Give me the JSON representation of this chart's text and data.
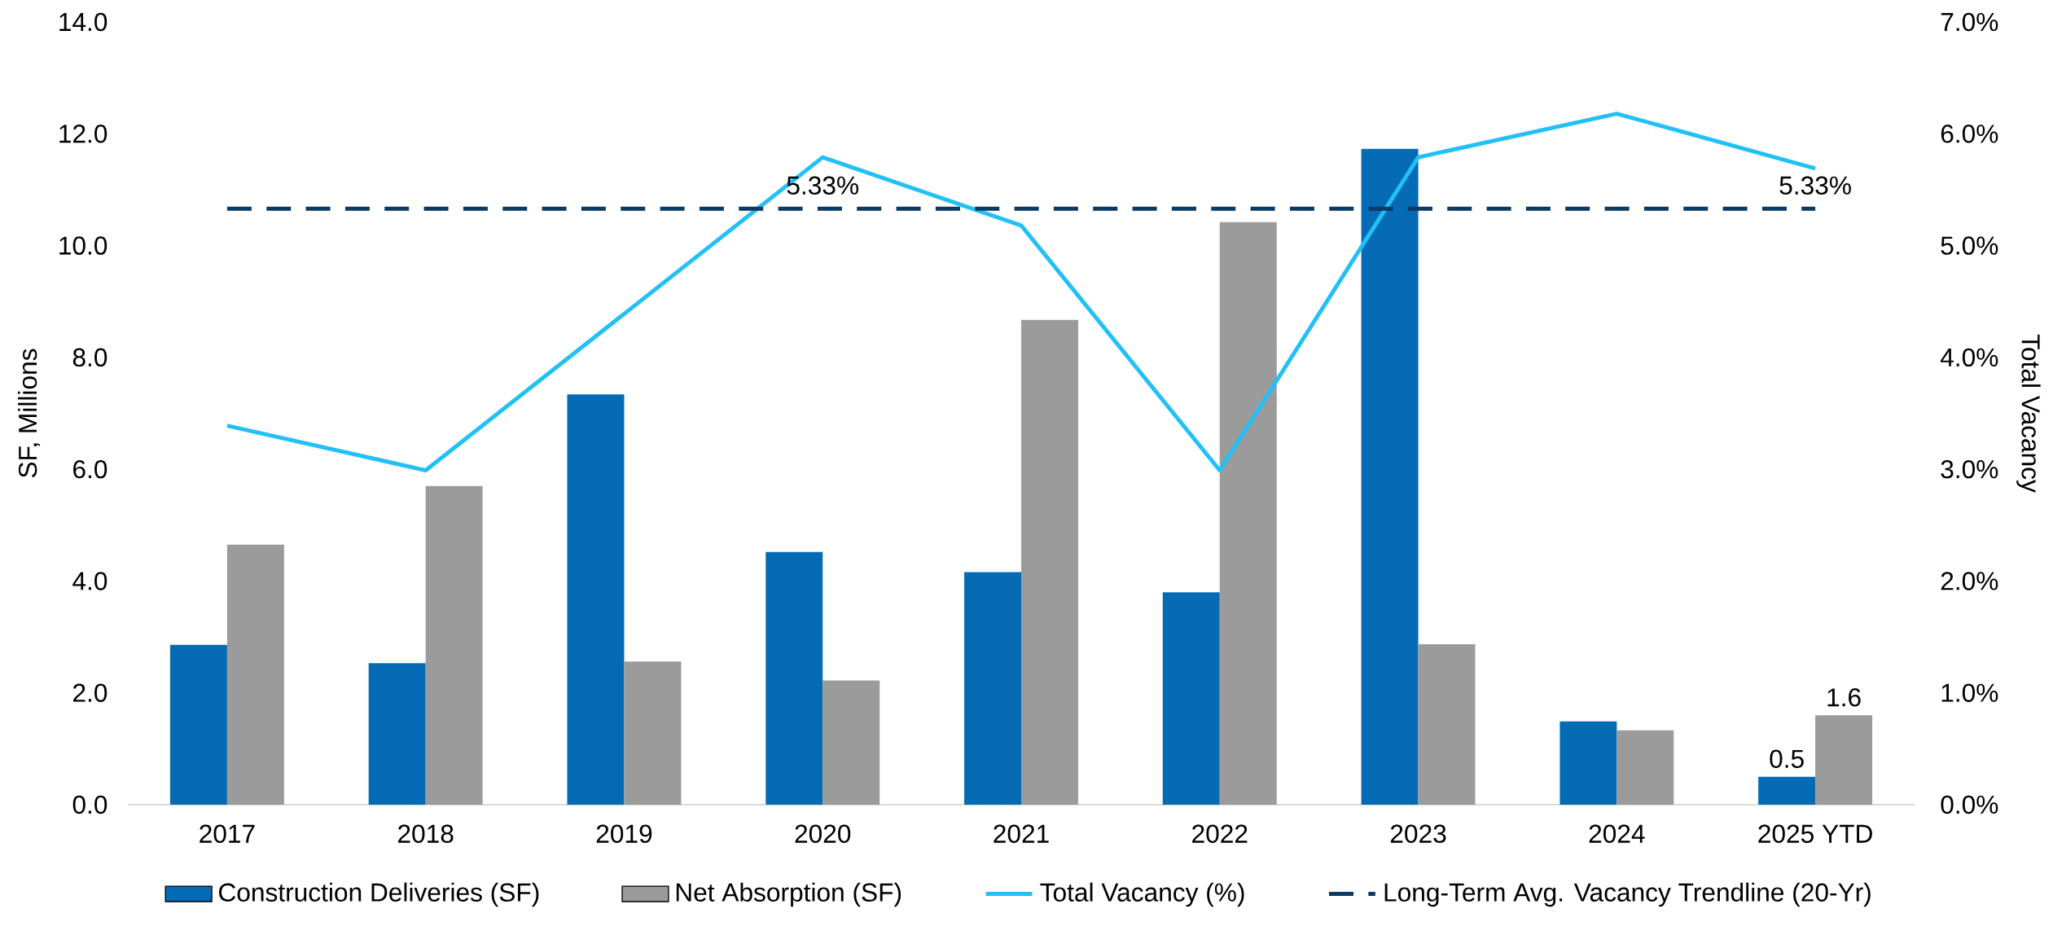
{
  "chart_data": {
    "type": "bar",
    "categories": [
      "2017",
      "2018",
      "2019",
      "2020",
      "2021",
      "2022",
      "2023",
      "2024",
      "2025 YTD"
    ],
    "ylabel": "SF, Millions",
    "y2label": "Total Vacancy",
    "ylim": [
      0,
      14
    ],
    "yticks": [
      {
        "value": 0,
        "label": "0.0"
      },
      {
        "value": 2,
        "label": "2.0"
      },
      {
        "value": 4,
        "label": "4.0"
      },
      {
        "value": 6,
        "label": "6.0"
      },
      {
        "value": 8,
        "label": "8.0"
      },
      {
        "value": 10,
        "label": "10.0"
      },
      {
        "value": 12,
        "label": "12.0"
      },
      {
        "value": 14,
        "label": "14.0"
      }
    ],
    "y2lim": [
      0,
      7
    ],
    "y2ticks": [
      {
        "value": 0,
        "label": "0.0%"
      },
      {
        "value": 1,
        "label": "1.0%"
      },
      {
        "value": 2,
        "label": "2.0%"
      },
      {
        "value": 3,
        "label": "3.0%"
      },
      {
        "value": 4,
        "label": "4.0%"
      },
      {
        "value": 5,
        "label": "5.0%"
      },
      {
        "value": 6,
        "label": "6.0%"
      },
      {
        "value": 7,
        "label": "7.0%"
      }
    ],
    "series": [
      {
        "name": "Construction Deliveries (SF)",
        "color": "#046bb4",
        "values": [
          2.86,
          2.53,
          7.34,
          4.52,
          4.16,
          3.8,
          11.73,
          1.49,
          0.5
        ],
        "value_labels": [
          null,
          null,
          null,
          null,
          null,
          null,
          null,
          null,
          "0.5"
        ]
      },
      {
        "name": "Net Absorption (SF)",
        "color": "#9b9b9b",
        "values": [
          4.65,
          5.7,
          2.56,
          2.22,
          8.67,
          10.42,
          2.87,
          1.33,
          1.6
        ],
        "value_labels": [
          null,
          null,
          null,
          null,
          null,
          null,
          null,
          null,
          "1.6"
        ]
      },
      {
        "name": "Total Vacancy (%)",
        "type": "line",
        "axis": "y2",
        "color": "#22c0f7",
        "line_style": "solid",
        "values": [
          3.39,
          2.99,
          4.39,
          5.79,
          5.18,
          2.99,
          5.79,
          6.18,
          5.69
        ]
      },
      {
        "name": "Long-Term Avg. Vacancy Trendline (20-Yr)",
        "type": "line",
        "axis": "y2",
        "color": "#0b3a62",
        "line_style": "dashed",
        "values": [
          5.33,
          5.33,
          5.33,
          5.33,
          5.33,
          5.33,
          5.33,
          5.33,
          5.33
        ],
        "value_labels": [
          null,
          null,
          null,
          "5.33%",
          null,
          null,
          null,
          null,
          "5.33%"
        ]
      }
    ],
    "legend": "bottom"
  }
}
